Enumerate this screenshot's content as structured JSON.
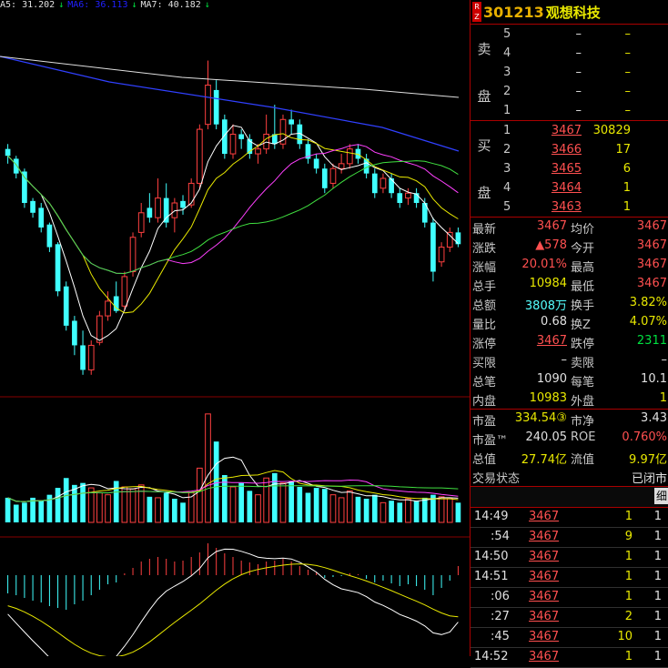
{
  "ma_header": [
    {
      "text": "A5: 31.202",
      "color": "#e0e0e0"
    },
    {
      "text": "↓",
      "color": "#00e040"
    },
    {
      "text": "MA6: 36.113",
      "color": "#2020ff"
    },
    {
      "text": "↓",
      "color": "#00e040"
    },
    {
      "text": "MA7: 40.182",
      "color": "#e0e0e0"
    },
    {
      "text": "↓",
      "color": "#00e040"
    }
  ],
  "stock": {
    "badge": "R Z",
    "code": "301213",
    "name": "观想科技"
  },
  "order_book": {
    "sell_label": [
      "卖",
      "盘"
    ],
    "buy_label": [
      "买",
      "盘"
    ],
    "asks": [
      {
        "level": "5",
        "price": "–",
        "vol": "–"
      },
      {
        "level": "4",
        "price": "–",
        "vol": "–"
      },
      {
        "level": "3",
        "price": "–",
        "vol": "–"
      },
      {
        "level": "2",
        "price": "–",
        "vol": "–"
      },
      {
        "level": "1",
        "price": "–",
        "vol": "–"
      }
    ],
    "bids": [
      {
        "level": "1",
        "price": "3467",
        "vol": "30829"
      },
      {
        "level": "2",
        "price": "3466",
        "vol": "17"
      },
      {
        "level": "3",
        "price": "3465",
        "vol": "6"
      },
      {
        "level": "4",
        "price": "3464",
        "vol": "1"
      },
      {
        "level": "5",
        "price": "3463",
        "vol": "1"
      }
    ]
  },
  "stats": [
    {
      "l1": "最新",
      "v1": "3467",
      "c1": "red",
      "l2": "均价",
      "v2": "3467",
      "c2": "red"
    },
    {
      "l1": "涨跌",
      "v1": "▲578",
      "c1": "red",
      "l2": "今开",
      "v2": "3467",
      "c2": "red"
    },
    {
      "l1": "涨幅",
      "v1": "20.01%",
      "c1": "red",
      "l2": "最高",
      "v2": "3467",
      "c2": "red"
    },
    {
      "l1": "总手",
      "v1": "10984",
      "c1": "yellow",
      "l2": "最低",
      "v2": "3467",
      "c2": "red"
    },
    {
      "l1": "总额",
      "v1": "3808万",
      "c1": "cyan",
      "l2": "换手",
      "v2": "3.82%",
      "c2": "yellow"
    },
    {
      "l1": "量比",
      "v1": "0.68",
      "c1": "white",
      "l2": "换Z",
      "v2": "4.07%",
      "c2": "yellow"
    },
    {
      "l1": "涨停",
      "v1": "3467",
      "c1": "red",
      "l2": "跌停",
      "v2": "2311",
      "c2": "green"
    },
    {
      "l1": "买限",
      "v1": "–",
      "c1": "white",
      "l2": "卖限",
      "v2": "–",
      "c2": "white"
    },
    {
      "l1": "总笔",
      "v1": "1090",
      "c1": "white",
      "l2": "每笔",
      "v2": "10.1",
      "c2": "white"
    },
    {
      "l1": "内盘",
      "v1": "10983",
      "c1": "yellow",
      "l2": "外盘",
      "v2": "1",
      "c2": "yellow"
    }
  ],
  "stats2": [
    {
      "l1": "市盈",
      "v1": "334.54③",
      "c1": "yellow",
      "l2": "市净",
      "v2": "3.43",
      "c2": "white"
    },
    {
      "l1": "市盈™",
      "v1": "240.05",
      "c1": "white",
      "l2": "ROE",
      "v2": "0.760%",
      "c2": "red"
    },
    {
      "l1": "总值",
      "v1": "27.74亿",
      "c1": "yellow",
      "l2": "流值",
      "v2": "9.97亿",
      "c2": "yellow"
    },
    {
      "l1": "交易状态",
      "v1": "",
      "c1": "white",
      "l2": "",
      "v2": "已闭市",
      "c2": "white"
    }
  ],
  "trades_header": "细",
  "trades": [
    {
      "time": "14:49",
      "price": "3467",
      "vol": "1",
      "n": "1"
    },
    {
      "time": ":54",
      "price": "3467",
      "vol": "9",
      "n": "1"
    },
    {
      "time": "14:50",
      "price": "3467",
      "vol": "1",
      "n": "1"
    },
    {
      "time": "14:51",
      "price": "3467",
      "vol": "1",
      "n": "1"
    },
    {
      "time": ":06",
      "price": "3467",
      "vol": "1",
      "n": "1"
    },
    {
      "time": ":27",
      "price": "3467",
      "vol": "2",
      "n": "1"
    },
    {
      "time": ":45",
      "price": "3467",
      "vol": "10",
      "n": "1"
    },
    {
      "time": "14:52",
      "price": "3467",
      "vol": "1",
      "n": "1"
    }
  ],
  "chart_data": {
    "type": "candlestick",
    "candles": [
      {
        "o": 30.5,
        "c": 29.8,
        "h": 31.0,
        "l": 29.0
      },
      {
        "o": 29.5,
        "c": 28.0,
        "h": 29.8,
        "l": 27.5
      },
      {
        "o": 28.2,
        "c": 25.0,
        "h": 28.5,
        "l": 24.5
      },
      {
        "o": 25.2,
        "c": 24.0,
        "h": 25.5,
        "l": 23.5
      },
      {
        "o": 24.5,
        "c": 22.5,
        "h": 25.0,
        "l": 22.0
      },
      {
        "o": 22.8,
        "c": 20.5,
        "h": 23.0,
        "l": 20.0
      },
      {
        "o": 20.8,
        "c": 16.0,
        "h": 21.0,
        "l": 15.5
      },
      {
        "o": 16.5,
        "c": 12.5,
        "h": 17.0,
        "l": 12.0
      },
      {
        "o": 13.0,
        "c": 10.5,
        "h": 13.5,
        "l": 9.5
      },
      {
        "o": 10.5,
        "c": 8.0,
        "h": 12.0,
        "l": 7.5
      },
      {
        "o": 8.0,
        "c": 10.5,
        "h": 11.0,
        "l": 7.5
      },
      {
        "o": 10.8,
        "c": 13.5,
        "h": 14.0,
        "l": 10.5
      },
      {
        "o": 13.5,
        "c": 15.0,
        "h": 16.0,
        "l": 13.0
      },
      {
        "o": 15.5,
        "c": 14.0,
        "h": 17.0,
        "l": 13.8
      },
      {
        "o": 14.5,
        "c": 17.5,
        "h": 18.0,
        "l": 14.0
      },
      {
        "o": 18.0,
        "c": 21.5,
        "h": 22.0,
        "l": 17.5
      },
      {
        "o": 22.0,
        "c": 24.0,
        "h": 25.0,
        "l": 21.5
      },
      {
        "o": 24.5,
        "c": 23.5,
        "h": 26.0,
        "l": 23.0
      },
      {
        "o": 23.5,
        "c": 25.5,
        "h": 27.5,
        "l": 23.0
      },
      {
        "o": 25.5,
        "c": 23.0,
        "h": 27.0,
        "l": 22.5
      },
      {
        "o": 23.5,
        "c": 25.0,
        "h": 25.5,
        "l": 22.0
      },
      {
        "o": 25.2,
        "c": 24.5,
        "h": 25.8,
        "l": 23.8
      },
      {
        "o": 24.8,
        "c": 27.0,
        "h": 27.5,
        "l": 24.5
      },
      {
        "o": 27.0,
        "c": 32.5,
        "h": 33.0,
        "l": 26.5
      },
      {
        "o": 33.0,
        "c": 37.0,
        "h": 39.5,
        "l": 32.5
      },
      {
        "o": 36.5,
        "c": 33.0,
        "h": 37.5,
        "l": 32.5
      },
      {
        "o": 33.5,
        "c": 30.0,
        "h": 34.0,
        "l": 29.5
      },
      {
        "o": 30.0,
        "c": 32.0,
        "h": 33.0,
        "l": 29.5
      },
      {
        "o": 32.0,
        "c": 31.5,
        "h": 32.5,
        "l": 30.5
      },
      {
        "o": 31.5,
        "c": 30.0,
        "h": 32.0,
        "l": 29.5
      },
      {
        "o": 30.0,
        "c": 30.5,
        "h": 31.0,
        "l": 29.0
      },
      {
        "o": 30.5,
        "c": 32.0,
        "h": 34.0,
        "l": 30.0
      },
      {
        "o": 32.0,
        "c": 31.0,
        "h": 35.0,
        "l": 30.5
      },
      {
        "o": 31.0,
        "c": 33.5,
        "h": 34.0,
        "l": 30.5
      },
      {
        "o": 33.5,
        "c": 33.0,
        "h": 34.5,
        "l": 32.0
      },
      {
        "o": 33.0,
        "c": 31.0,
        "h": 33.5,
        "l": 30.5
      },
      {
        "o": 31.0,
        "c": 29.5,
        "h": 31.5,
        "l": 29.0
      },
      {
        "o": 29.5,
        "c": 28.5,
        "h": 30.0,
        "l": 28.0
      },
      {
        "o": 28.5,
        "c": 26.5,
        "h": 29.0,
        "l": 26.0
      },
      {
        "o": 27.0,
        "c": 28.5,
        "h": 29.0,
        "l": 26.5
      },
      {
        "o": 28.5,
        "c": 29.0,
        "h": 30.0,
        "l": 28.0
      },
      {
        "o": 29.0,
        "c": 30.5,
        "h": 31.0,
        "l": 28.5
      },
      {
        "o": 30.5,
        "c": 29.5,
        "h": 31.0,
        "l": 29.0
      },
      {
        "o": 29.5,
        "c": 28.0,
        "h": 30.0,
        "l": 27.5
      },
      {
        "o": 28.0,
        "c": 26.0,
        "h": 28.5,
        "l": 25.5
      },
      {
        "o": 26.5,
        "c": 27.5,
        "h": 28.0,
        "l": 26.0
      },
      {
        "o": 27.5,
        "c": 26.0,
        "h": 28.0,
        "l": 25.5
      },
      {
        "o": 26.0,
        "c": 25.0,
        "h": 26.5,
        "l": 24.5
      },
      {
        "o": 25.5,
        "c": 26.0,
        "h": 26.5,
        "l": 24.8
      },
      {
        "o": 26.0,
        "c": 25.0,
        "h": 26.5,
        "l": 24.5
      },
      {
        "o": 25.0,
        "c": 23.0,
        "h": 25.5,
        "l": 22.5
      },
      {
        "o": 23.0,
        "c": 18.0,
        "h": 23.5,
        "l": 17.0
      },
      {
        "o": 19.0,
        "c": 20.5,
        "h": 21.0,
        "l": 18.5
      },
      {
        "o": 20.5,
        "c": 22.0,
        "h": 22.5,
        "l": 20.0
      },
      {
        "o": 22.0,
        "c": 20.8,
        "h": 22.5,
        "l": 20.5
      }
    ],
    "volume": [
      {
        "v": 2.5,
        "up": false
      },
      {
        "v": 1.8,
        "up": false
      },
      {
        "v": 2.0,
        "up": false
      },
      {
        "v": 2.5,
        "up": false
      },
      {
        "v": 2.2,
        "up": false
      },
      {
        "v": 2.8,
        "up": false
      },
      {
        "v": 3.5,
        "up": false
      },
      {
        "v": 4.5,
        "up": false
      },
      {
        "v": 3.8,
        "up": false
      },
      {
        "v": 4.0,
        "up": false
      },
      {
        "v": 3.5,
        "up": true
      },
      {
        "v": 3.0,
        "up": true
      },
      {
        "v": 2.8,
        "up": true
      },
      {
        "v": 4.2,
        "up": false
      },
      {
        "v": 3.6,
        "up": true
      },
      {
        "v": 3.4,
        "up": true
      },
      {
        "v": 3.8,
        "up": true
      },
      {
        "v": 2.6,
        "up": false
      },
      {
        "v": 2.5,
        "up": true
      },
      {
        "v": 3.0,
        "up": false
      },
      {
        "v": 2.4,
        "up": false
      },
      {
        "v": 2.0,
        "up": false
      },
      {
        "v": 3.0,
        "up": true
      },
      {
        "v": 5.5,
        "up": true
      },
      {
        "v": 11.0,
        "up": true
      },
      {
        "v": 8.2,
        "up": false
      },
      {
        "v": 4.8,
        "up": false
      },
      {
        "v": 3.6,
        "up": true
      },
      {
        "v": 4.0,
        "up": false
      },
      {
        "v": 3.2,
        "up": false
      },
      {
        "v": 2.8,
        "up": true
      },
      {
        "v": 4.5,
        "up": true
      },
      {
        "v": 5.0,
        "up": false
      },
      {
        "v": 4.0,
        "up": true
      },
      {
        "v": 4.2,
        "up": false
      },
      {
        "v": 3.6,
        "up": false
      },
      {
        "v": 3.0,
        "up": false
      },
      {
        "v": 3.5,
        "up": false
      },
      {
        "v": 3.4,
        "up": false
      },
      {
        "v": 2.8,
        "up": true
      },
      {
        "v": 2.5,
        "up": true
      },
      {
        "v": 3.2,
        "up": true
      },
      {
        "v": 2.6,
        "up": false
      },
      {
        "v": 2.4,
        "up": false
      },
      {
        "v": 2.8,
        "up": false
      },
      {
        "v": 2.0,
        "up": true
      },
      {
        "v": 2.2,
        "up": false
      },
      {
        "v": 2.0,
        "up": false
      },
      {
        "v": 2.4,
        "up": true
      },
      {
        "v": 2.2,
        "up": false
      },
      {
        "v": 2.5,
        "up": false
      },
      {
        "v": 2.8,
        "up": false
      },
      {
        "v": 2.6,
        "up": true
      },
      {
        "v": 2.4,
        "up": true
      },
      {
        "v": 2.0,
        "up": false
      }
    ],
    "macd": [
      -2,
      -2.2,
      -2.5,
      -2.8,
      -3.0,
      -3.4,
      -3.6,
      -3.8,
      -3.2,
      -2.8,
      -2.2,
      -1.6,
      -1.0,
      -0.8,
      0.2,
      0.8,
      1.5,
      1.8,
      2.0,
      1.8,
      1.5,
      1.6,
      2.0,
      2.5,
      3.5,
      3.0,
      2.4,
      2.0,
      1.6,
      1.4,
      1.2,
      1.5,
      1.6,
      1.8,
      1.5,
      1.0,
      0.6,
      0.3,
      -0.3,
      -0.2,
      -0.1,
      0.2,
      0.1,
      -0.4,
      -0.8,
      -0.6,
      -0.9,
      -1.2,
      -1.0,
      -1.2,
      -1.6,
      -2.2,
      -1.4,
      -0.6,
      1.0
    ]
  }
}
